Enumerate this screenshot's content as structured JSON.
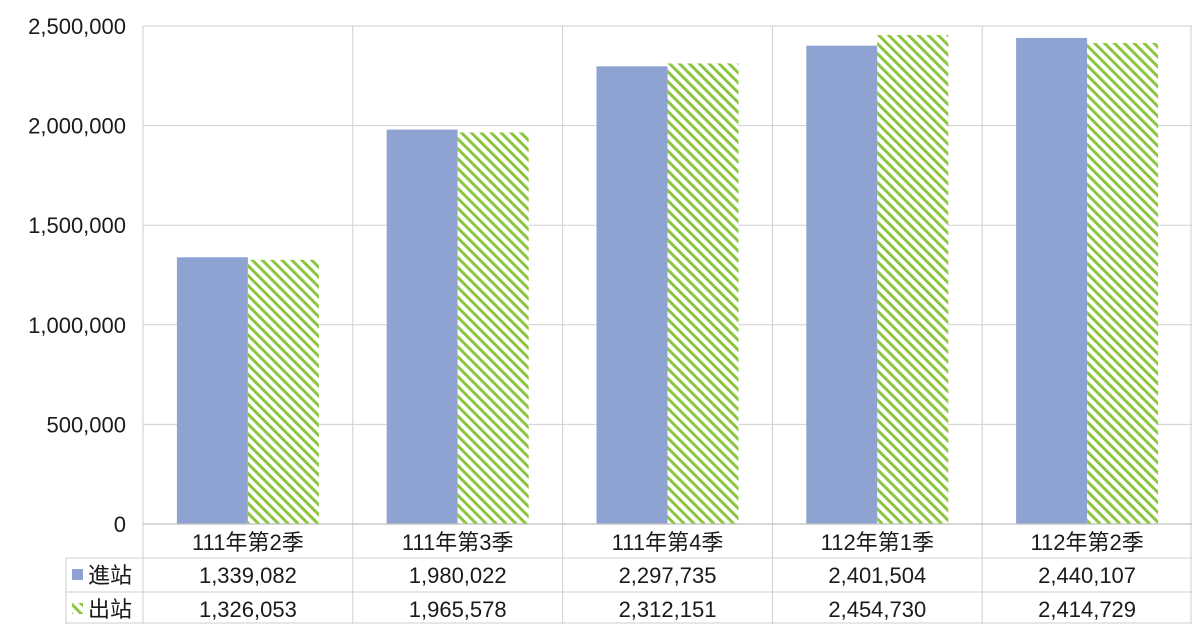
{
  "chart_data": {
    "type": "bar",
    "categories": [
      "111年第2季",
      "111年第3季",
      "111年第4季",
      "112年第1季",
      "112年第2季"
    ],
    "series": [
      {
        "name": "進站",
        "values": [
          1339082,
          1980022,
          2297735,
          2401504,
          2440107
        ],
        "labels": [
          "1,339,082",
          "1,980,022",
          "2,297,735",
          "2,401,504",
          "2,440,107"
        ],
        "color": "#8fa3d3",
        "pattern": "solid"
      },
      {
        "name": "出站",
        "values": [
          1326053,
          1965578,
          2312151,
          2454730,
          2414729
        ],
        "labels": [
          "1,326,053",
          "1,965,578",
          "2,312,151",
          "2,454,730",
          "2,414,729"
        ],
        "color": "#8cc63f",
        "pattern": "diagonal-hatch"
      }
    ],
    "ylim": [
      0,
      2500000
    ],
    "yticks": [
      0,
      500000,
      1000000,
      1500000,
      2000000,
      2500000
    ],
    "ytick_labels": [
      "0",
      "500,000",
      "1,000,000",
      "1,500,000",
      "2,000,000",
      "2,500,000"
    ],
    "grid": true,
    "legend": "data-table-left",
    "data_table": true
  }
}
